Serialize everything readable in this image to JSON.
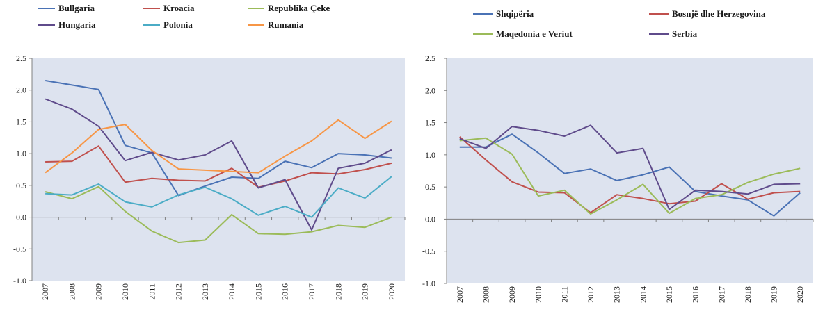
{
  "chart_data": [
    {
      "type": "line",
      "x": [
        "2007",
        "2008",
        "2009",
        "2010",
        "2011",
        "2012",
        "2013",
        "2014",
        "2015",
        "2016",
        "2017",
        "2018",
        "2019",
        "2020"
      ],
      "ylim": [
        -1.0,
        2.5
      ],
      "yticks": [
        "2.5",
        "2.0",
        "1.5",
        "1.0",
        "0.5",
        "0.0",
        "-0.5",
        "-1.0"
      ],
      "grid": false,
      "legend": "top",
      "plot_background": "#dde3ef",
      "series": [
        {
          "name": "Bullgaria",
          "color": "#4a72b5",
          "values": [
            2.15,
            2.08,
            2.01,
            1.13,
            1.01,
            0.34,
            0.49,
            0.63,
            0.61,
            0.88,
            0.78,
            1.0,
            0.98,
            0.93
          ]
        },
        {
          "name": "Kroacia",
          "color": "#c0504d",
          "values": [
            0.87,
            0.88,
            1.12,
            0.55,
            0.61,
            0.58,
            0.57,
            0.77,
            0.47,
            0.57,
            0.7,
            0.68,
            0.75,
            0.85
          ]
        },
        {
          "name": "Republika Çeke",
          "color": "#9bbb59",
          "values": [
            0.4,
            0.29,
            0.48,
            0.09,
            -0.22,
            -0.4,
            -0.36,
            0.04,
            -0.26,
            -0.27,
            -0.23,
            -0.13,
            -0.16,
            0.0
          ]
        },
        {
          "name": "Hungaria",
          "color": "#5f4b8b",
          "values": [
            1.86,
            1.7,
            1.43,
            0.89,
            1.02,
            0.9,
            0.98,
            1.2,
            0.46,
            0.59,
            -0.2,
            0.77,
            0.85,
            1.06
          ]
        },
        {
          "name": "Polonia",
          "color": "#4bacc6",
          "values": [
            0.37,
            0.35,
            0.52,
            0.24,
            0.16,
            0.35,
            0.47,
            0.29,
            0.03,
            0.17,
            0.0,
            0.46,
            0.3,
            0.64
          ]
        },
        {
          "name": "Rumania",
          "color": "#f79646",
          "values": [
            0.7,
            1.01,
            1.38,
            1.46,
            1.05,
            0.76,
            0.74,
            0.72,
            0.7,
            0.96,
            1.2,
            1.53,
            1.24,
            1.51
          ]
        }
      ]
    },
    {
      "type": "line",
      "x": [
        "2007",
        "2008",
        "2009",
        "2010",
        "2011",
        "2012",
        "2013",
        "2014",
        "2015",
        "2016",
        "2017",
        "2018",
        "2019",
        "2020"
      ],
      "ylim": [
        -1.0,
        2.5
      ],
      "yticks": [
        "2.5",
        "2.0",
        "1.5",
        "1.0",
        "0.5",
        "0.0",
        "-0.5",
        "-1.0"
      ],
      "grid": false,
      "legend": "top",
      "plot_background": "#dde3ef",
      "series": [
        {
          "name": "Shqipëria",
          "color": "#4a72b5",
          "values": [
            1.12,
            1.12,
            1.32,
            1.03,
            0.71,
            0.78,
            0.6,
            0.69,
            0.81,
            0.43,
            0.36,
            0.3,
            0.05,
            0.41
          ]
        },
        {
          "name": "Bosnjë dhe Herzegovina",
          "color": "#c0504d",
          "values": [
            1.28,
            0.92,
            0.58,
            0.42,
            0.41,
            0.1,
            0.38,
            0.32,
            0.24,
            0.28,
            0.55,
            0.31,
            0.41,
            0.43
          ]
        },
        {
          "name": "Maqedonia e Veriut",
          "color": "#9bbb59",
          "values": [
            1.22,
            1.26,
            1.01,
            0.36,
            0.45,
            0.08,
            0.3,
            0.54,
            0.09,
            0.32,
            0.38,
            0.57,
            0.7,
            0.79
          ]
        },
        {
          "name": "Serbia",
          "color": "#5f4b8b",
          "values": [
            1.25,
            1.1,
            1.44,
            1.38,
            1.29,
            1.46,
            1.03,
            1.1,
            0.15,
            0.45,
            0.43,
            0.39,
            0.54,
            0.55
          ]
        }
      ]
    }
  ]
}
